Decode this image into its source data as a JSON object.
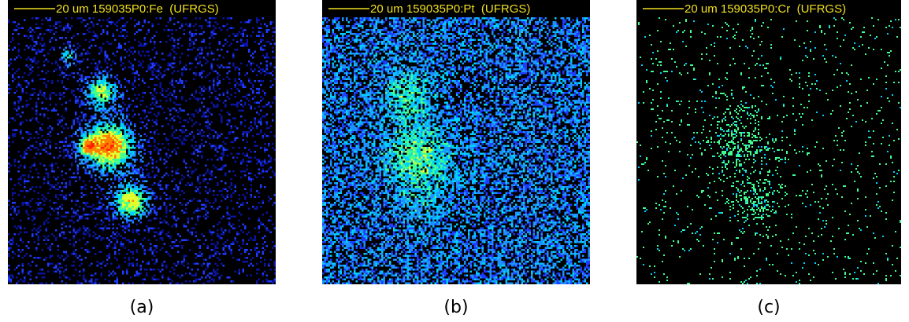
{
  "panels": [
    {
      "scale_label": "20 um 159035P0:Fe  (UFRGS)",
      "caption": "(a)"
    },
    {
      "scale_label": "20 um 159035P0:Pt  (UFRGS)",
      "caption": "(b)"
    },
    {
      "scale_label": "20 um 159035P0:Cr  (UFRGS)",
      "caption": "(c)"
    }
  ]
}
